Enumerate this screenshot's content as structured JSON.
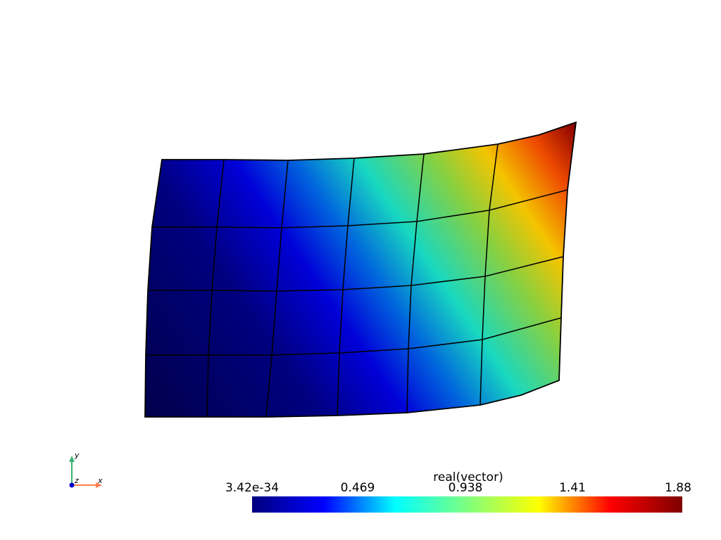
{
  "scalar_bar": {
    "title": "real(vector)",
    "ticks": [
      "3.42e-34",
      "0.469",
      "0.938",
      "1.41",
      "1.88"
    ],
    "colormap": [
      "#00007f",
      "#0000ff",
      "#00ffff",
      "#7fff7f",
      "#ffff00",
      "#ff0000",
      "#7f0000"
    ]
  },
  "axes": {
    "x_label": "x",
    "y_label": "y",
    "z_label": "z",
    "x_color": "#ff7f50",
    "y_color": "#3cb371",
    "z_color": "#0000cd"
  },
  "mesh": {
    "columns": 6,
    "rows": 4,
    "edge_color": "#000000"
  }
}
